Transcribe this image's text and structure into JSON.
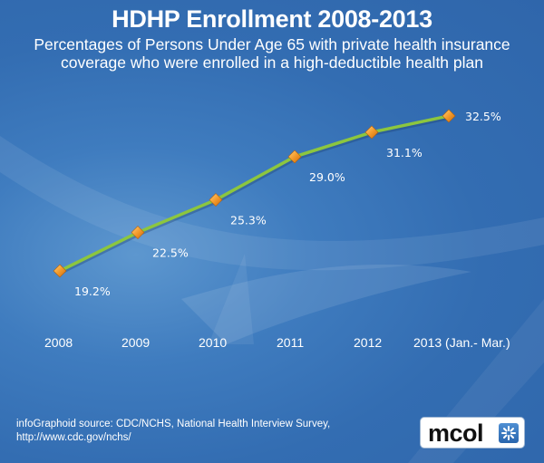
{
  "header": {
    "title": "HDHP Enrollment 2008-2013",
    "subtitle_line1": "Percentages of Persons Under Age 65 with private health insurance",
    "subtitle_line2": "coverage who were enrolled in a high-deductible health plan"
  },
  "chart_data": {
    "type": "line",
    "title": "HDHP Enrollment 2008-2013",
    "subtitle": "Percentages of Persons Under Age 65 with private health insurance coverage who were enrolled in a high-deductible health plan",
    "categories": [
      "2008",
      "2009",
      "2010",
      "2011",
      "2012",
      "2013 (Jan.- Mar.)"
    ],
    "series": [
      {
        "name": "HDHP Enrollment",
        "values": [
          19.2,
          22.5,
          25.3,
          29.0,
          31.1,
          32.5
        ],
        "labels": [
          "19.2%",
          "22.5%",
          "25.3%",
          "29.0%",
          "31.1%",
          "32.5%"
        ]
      }
    ],
    "xlabel": "",
    "ylabel": "",
    "grid": false,
    "legend": "none",
    "line_color": "#8cc63f",
    "marker_color": "#f39a2b"
  },
  "footer": {
    "source_line1": "infoGraphoid source:  CDC/NCHS, National Health Interview Survey,",
    "source_line2": "http://www.cdc.gov/nchs/",
    "logo_text": "mcol"
  }
}
